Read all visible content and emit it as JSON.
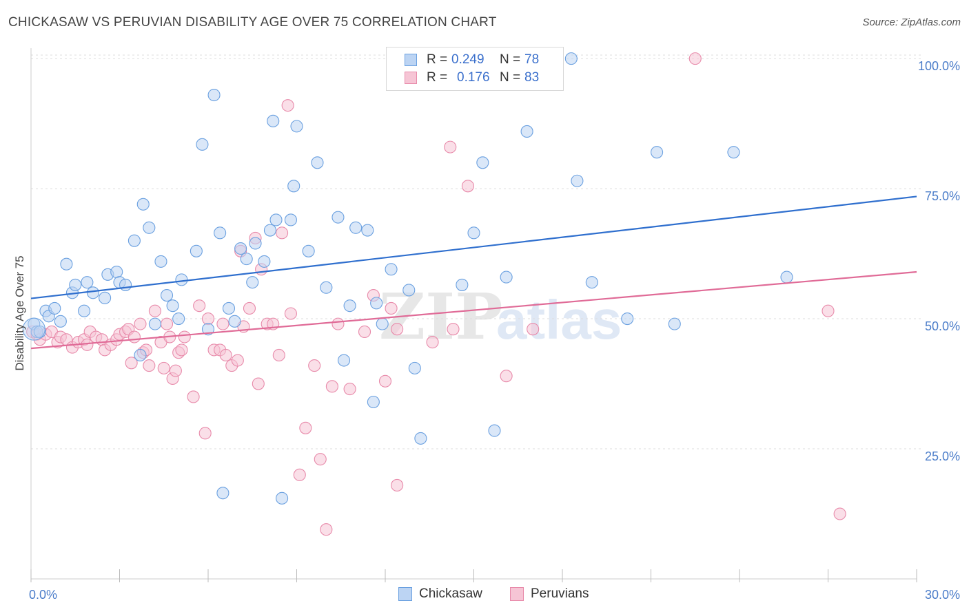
{
  "title": "CHICKASAW VS PERUVIAN DISABILITY AGE OVER 75 CORRELATION CHART",
  "source": "Source: ZipAtlas.com",
  "colors": {
    "chickasaw": "#6aa0e0",
    "chickasaw_fill": "#bcd4f3",
    "chickasaw_line": "#2f6fce",
    "peruvians": "#e88aaa",
    "peruvians_fill": "#f6c5d5",
    "peruvians_line": "#e06b97",
    "tick": "#4a7cc9",
    "grid": "#dddddd"
  },
  "legend": {
    "rows": [
      {
        "r_label": "R =",
        "r_value": "0.249",
        "n_label": "N =",
        "n_value": "78"
      },
      {
        "r_label": "R =",
        "r_value": "0.176",
        "n_label": "N =",
        "n_value": "83"
      }
    ]
  },
  "bottom_legend": [
    "Chickasaw",
    "Peruvians"
  ],
  "chart_data": {
    "type": "scatter",
    "title": "CHICKASAW VS PERUVIAN DISABILITY AGE OVER 75 CORRELATION CHART",
    "xlabel": "",
    "ylabel": "Disability Age Over 75",
    "xlim": [
      0,
      30
    ],
    "ylim": [
      0,
      102
    ],
    "x_tick_labels": [
      "0.0%",
      "30.0%"
    ],
    "y_ticks": [
      25,
      50,
      75,
      100
    ],
    "y_tick_labels": [
      "25.0%",
      "50.0%",
      "75.0%",
      "100.0%"
    ],
    "grid": true,
    "legend_position": "top-center",
    "series": [
      {
        "name": "Chickasaw",
        "r": 0.249,
        "n": 78,
        "trend": {
          "x": [
            0,
            30
          ],
          "y": [
            53.9,
            73.5
          ]
        },
        "points": [
          [
            0.1,
            49
          ],
          [
            0.2,
            47.5
          ],
          [
            0.3,
            47.5
          ],
          [
            0.5,
            51.5
          ],
          [
            0.6,
            50.5
          ],
          [
            0.8,
            52
          ],
          [
            1.0,
            49.5
          ],
          [
            1.2,
            60.5
          ],
          [
            1.4,
            55
          ],
          [
            1.5,
            56.5
          ],
          [
            1.8,
            51.5
          ],
          [
            1.9,
            57
          ],
          [
            2.1,
            55
          ],
          [
            2.5,
            54
          ],
          [
            2.6,
            58.5
          ],
          [
            2.9,
            59
          ],
          [
            3.0,
            57
          ],
          [
            3.2,
            56.5
          ],
          [
            3.5,
            65
          ],
          [
            3.7,
            43
          ],
          [
            3.8,
            72
          ],
          [
            4.0,
            67.5
          ],
          [
            4.2,
            49
          ],
          [
            4.4,
            61
          ],
          [
            4.6,
            54.5
          ],
          [
            4.8,
            52.5
          ],
          [
            5.0,
            50
          ],
          [
            5.1,
            57.5
          ],
          [
            5.6,
            63
          ],
          [
            5.8,
            83.5
          ],
          [
            6.0,
            48
          ],
          [
            6.2,
            93
          ],
          [
            6.4,
            66.5
          ],
          [
            6.5,
            16.5
          ],
          [
            6.7,
            52
          ],
          [
            6.9,
            49.5
          ],
          [
            7.1,
            63.5
          ],
          [
            7.3,
            61.5
          ],
          [
            7.5,
            57
          ],
          [
            7.6,
            64.5
          ],
          [
            7.9,
            61
          ],
          [
            8.1,
            67
          ],
          [
            8.2,
            88
          ],
          [
            8.3,
            69
          ],
          [
            8.5,
            15.5
          ],
          [
            8.8,
            69
          ],
          [
            8.9,
            75.5
          ],
          [
            9.0,
            87
          ],
          [
            9.4,
            63
          ],
          [
            9.7,
            80
          ],
          [
            10.0,
            56
          ],
          [
            10.4,
            69.5
          ],
          [
            10.6,
            42
          ],
          [
            10.8,
            52.5
          ],
          [
            11.0,
            67.5
          ],
          [
            11.4,
            67
          ],
          [
            11.6,
            34
          ],
          [
            11.7,
            53
          ],
          [
            11.9,
            49
          ],
          [
            12.2,
            59.5
          ],
          [
            12.8,
            55.5
          ],
          [
            13.0,
            40.5
          ],
          [
            13.2,
            27
          ],
          [
            14.6,
            56.5
          ],
          [
            15.0,
            66.5
          ],
          [
            15.3,
            80
          ],
          [
            15.7,
            28.5
          ],
          [
            16.1,
            58
          ],
          [
            16.6,
            100
          ],
          [
            16.8,
            86
          ],
          [
            18.3,
            100
          ],
          [
            18.5,
            76.5
          ],
          [
            19.0,
            57
          ],
          [
            20.2,
            50
          ],
          [
            21.2,
            82
          ],
          [
            21.8,
            49
          ],
          [
            23.8,
            82
          ],
          [
            25.6,
            58
          ]
        ]
      },
      {
        "name": "Peruvians",
        "r": 0.176,
        "n": 83,
        "trend": {
          "x": [
            0,
            30
          ],
          "y": [
            44.3,
            59
          ]
        },
        "points": [
          [
            0.05,
            47.5
          ],
          [
            0.2,
            47
          ],
          [
            0.3,
            46
          ],
          [
            0.5,
            47
          ],
          [
            0.7,
            47.5
          ],
          [
            0.9,
            45.5
          ],
          [
            1.0,
            46.5
          ],
          [
            1.2,
            46
          ],
          [
            1.4,
            44.5
          ],
          [
            1.6,
            45.5
          ],
          [
            1.8,
            46
          ],
          [
            1.9,
            45
          ],
          [
            2.0,
            47.5
          ],
          [
            2.2,
            46.5
          ],
          [
            2.4,
            46
          ],
          [
            2.5,
            44
          ],
          [
            2.7,
            45
          ],
          [
            2.9,
            46
          ],
          [
            3.0,
            47
          ],
          [
            3.2,
            47.5
          ],
          [
            3.3,
            48
          ],
          [
            3.4,
            41.5
          ],
          [
            3.5,
            46.5
          ],
          [
            3.7,
            49
          ],
          [
            3.8,
            43.5
          ],
          [
            3.9,
            44
          ],
          [
            4.0,
            41
          ],
          [
            4.2,
            51.5
          ],
          [
            4.4,
            45.5
          ],
          [
            4.5,
            40.5
          ],
          [
            4.6,
            49
          ],
          [
            4.7,
            46.5
          ],
          [
            4.8,
            38.5
          ],
          [
            4.9,
            40
          ],
          [
            5.0,
            43.5
          ],
          [
            5.1,
            44
          ],
          [
            5.2,
            46.5
          ],
          [
            5.5,
            35
          ],
          [
            5.7,
            52.5
          ],
          [
            5.9,
            28
          ],
          [
            6.0,
            50
          ],
          [
            6.2,
            44
          ],
          [
            6.4,
            44
          ],
          [
            6.5,
            49
          ],
          [
            6.6,
            43
          ],
          [
            6.8,
            41
          ],
          [
            7.0,
            42
          ],
          [
            7.2,
            48.5
          ],
          [
            7.4,
            52
          ],
          [
            7.6,
            65.5
          ],
          [
            7.7,
            37.5
          ],
          [
            7.8,
            59.5
          ],
          [
            8.0,
            49
          ],
          [
            8.2,
            49
          ],
          [
            8.4,
            43
          ],
          [
            8.5,
            66.5
          ],
          [
            8.7,
            91
          ],
          [
            8.8,
            51
          ],
          [
            9.1,
            20
          ],
          [
            9.3,
            29
          ],
          [
            9.6,
            41
          ],
          [
            9.8,
            23
          ],
          [
            10.0,
            9.5
          ],
          [
            10.2,
            37
          ],
          [
            10.4,
            49
          ],
          [
            10.8,
            36.5
          ],
          [
            11.3,
            47.5
          ],
          [
            11.6,
            54.5
          ],
          [
            12.0,
            38
          ],
          [
            12.2,
            52
          ],
          [
            12.4,
            18
          ],
          [
            13.2,
            100
          ],
          [
            13.6,
            45.5
          ],
          [
            14.2,
            83
          ],
          [
            14.3,
            48
          ],
          [
            14.8,
            75.5
          ],
          [
            16.1,
            39
          ],
          [
            17.0,
            48
          ],
          [
            22.5,
            100
          ],
          [
            27.0,
            51.5
          ],
          [
            27.4,
            12.5
          ],
          [
            12.4,
            48
          ],
          [
            7.1,
            63
          ]
        ]
      }
    ]
  }
}
